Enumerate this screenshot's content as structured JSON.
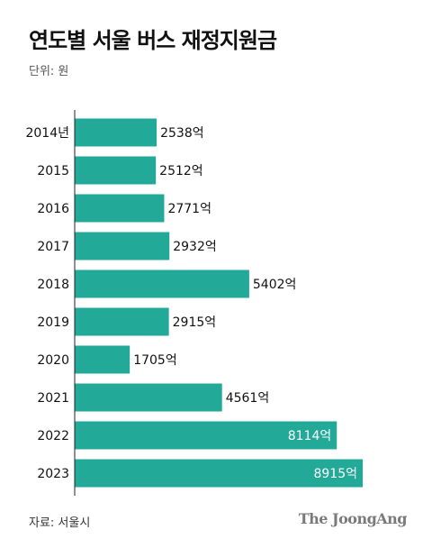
{
  "title": "연도별 서울 버스 재정지원금",
  "unit_label": "단위: 원",
  "source": "자료: 서울시",
  "logo": "The JoongAng",
  "colors": {
    "bar": "#22A998",
    "axis": "#222222",
    "text": "#111111",
    "inside_label": "#ffffff"
  },
  "chart_data": {
    "type": "bar",
    "orientation": "horizontal",
    "title": "연도별 서울 버스 재정지원금",
    "unit": "원",
    "categories": [
      "2014년",
      "2015",
      "2016",
      "2017",
      "2018",
      "2019",
      "2020",
      "2021",
      "2022",
      "2023"
    ],
    "values": [
      2538,
      2512,
      2771,
      2932,
      5402,
      2915,
      1705,
      4561,
      8114,
      8915
    ],
    "value_labels": [
      "2538억",
      "2512억",
      "2771억",
      "2932억",
      "5402억",
      "2915억",
      "1705억",
      "4561억",
      "8114억",
      "8915억"
    ],
    "xlim": [
      0,
      8915
    ],
    "grid": false,
    "legend": "none"
  }
}
